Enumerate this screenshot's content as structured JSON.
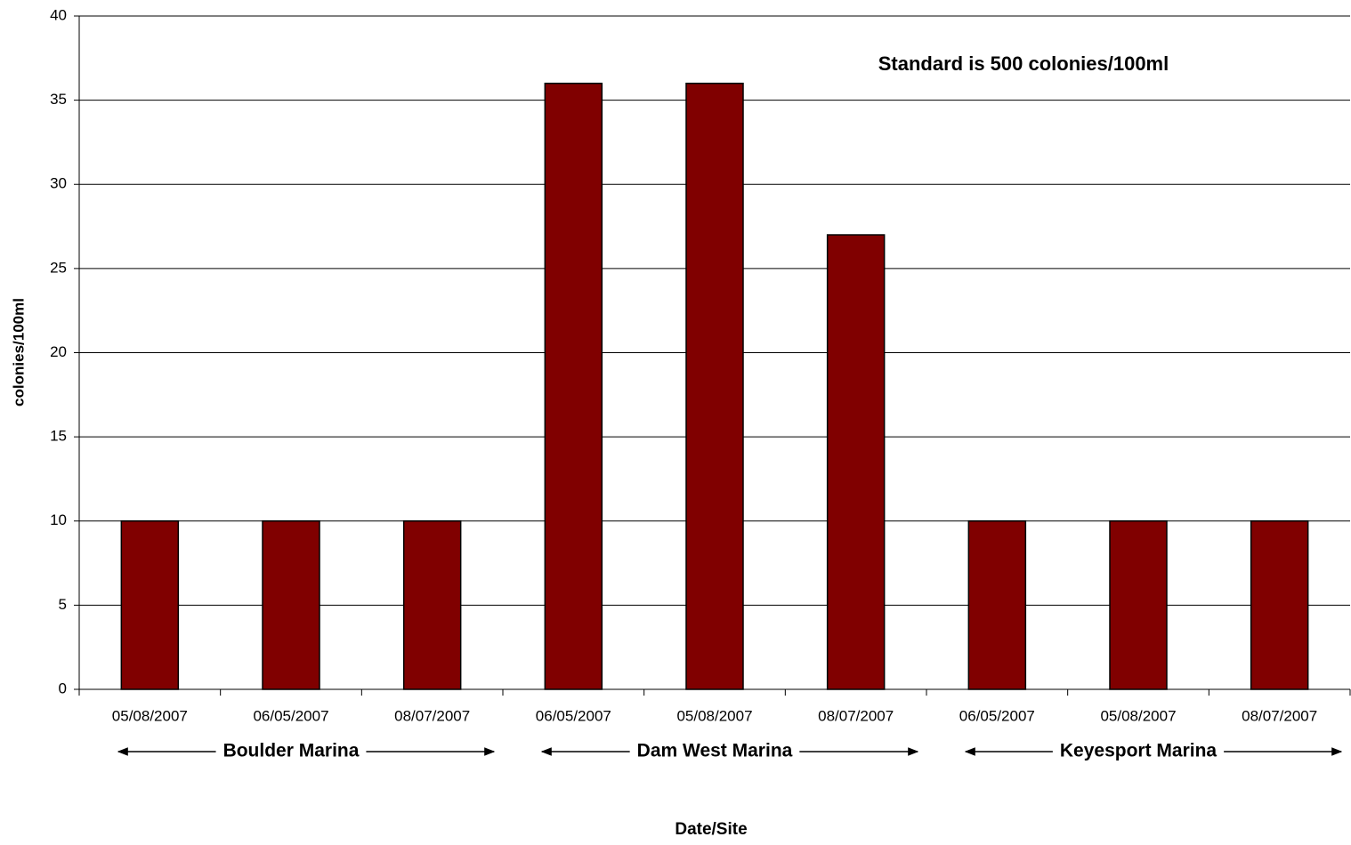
{
  "chart_data": {
    "type": "bar",
    "annotation": "Standard is 500 colonies/100ml",
    "x_label": "Date/Site",
    "y_label": "colonies/100ml",
    "categories": [
      "05/08/2007",
      "06/05/2007",
      "08/07/2007",
      "06/05/2007",
      "05/08/2007",
      "08/07/2007",
      "06/05/2007",
      "05/08/2007",
      "08/07/2007"
    ],
    "groups": [
      "Boulder Marina",
      "Dam West Marina",
      "Keyesport Marina"
    ],
    "values": [
      10,
      10,
      10,
      36,
      36,
      27,
      10,
      10,
      10
    ],
    "color": "#800000",
    "ylim": [
      0,
      40
    ],
    "yticks": [
      0,
      5,
      10,
      15,
      20,
      25,
      30,
      35,
      40
    ],
    "grid": true
  }
}
